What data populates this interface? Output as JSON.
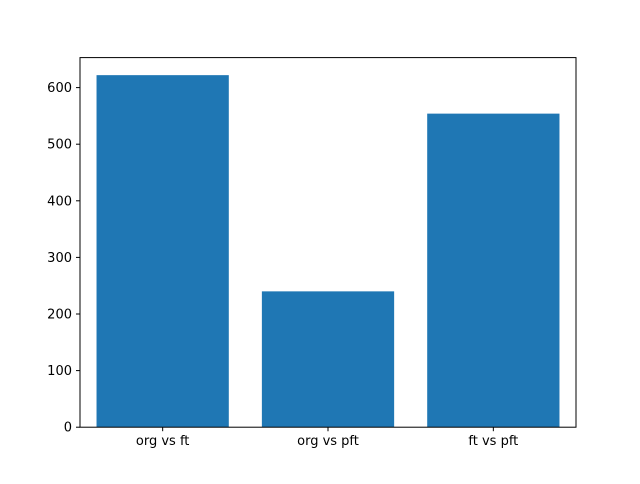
{
  "chart_data": {
    "type": "bar",
    "title": "",
    "xlabel": "",
    "ylabel": "",
    "categories": [
      "org vs ft",
      "org vs pft",
      "ft vs pft"
    ],
    "values": [
      622,
      240,
      554
    ],
    "yticks": [
      0,
      100,
      200,
      300,
      400,
      500,
      600
    ],
    "ylim": [
      0,
      653
    ],
    "bar_color": "#1f77b4",
    "axis_color": "#000000",
    "background_color": "#ffffff",
    "grid": false,
    "legend": null
  }
}
